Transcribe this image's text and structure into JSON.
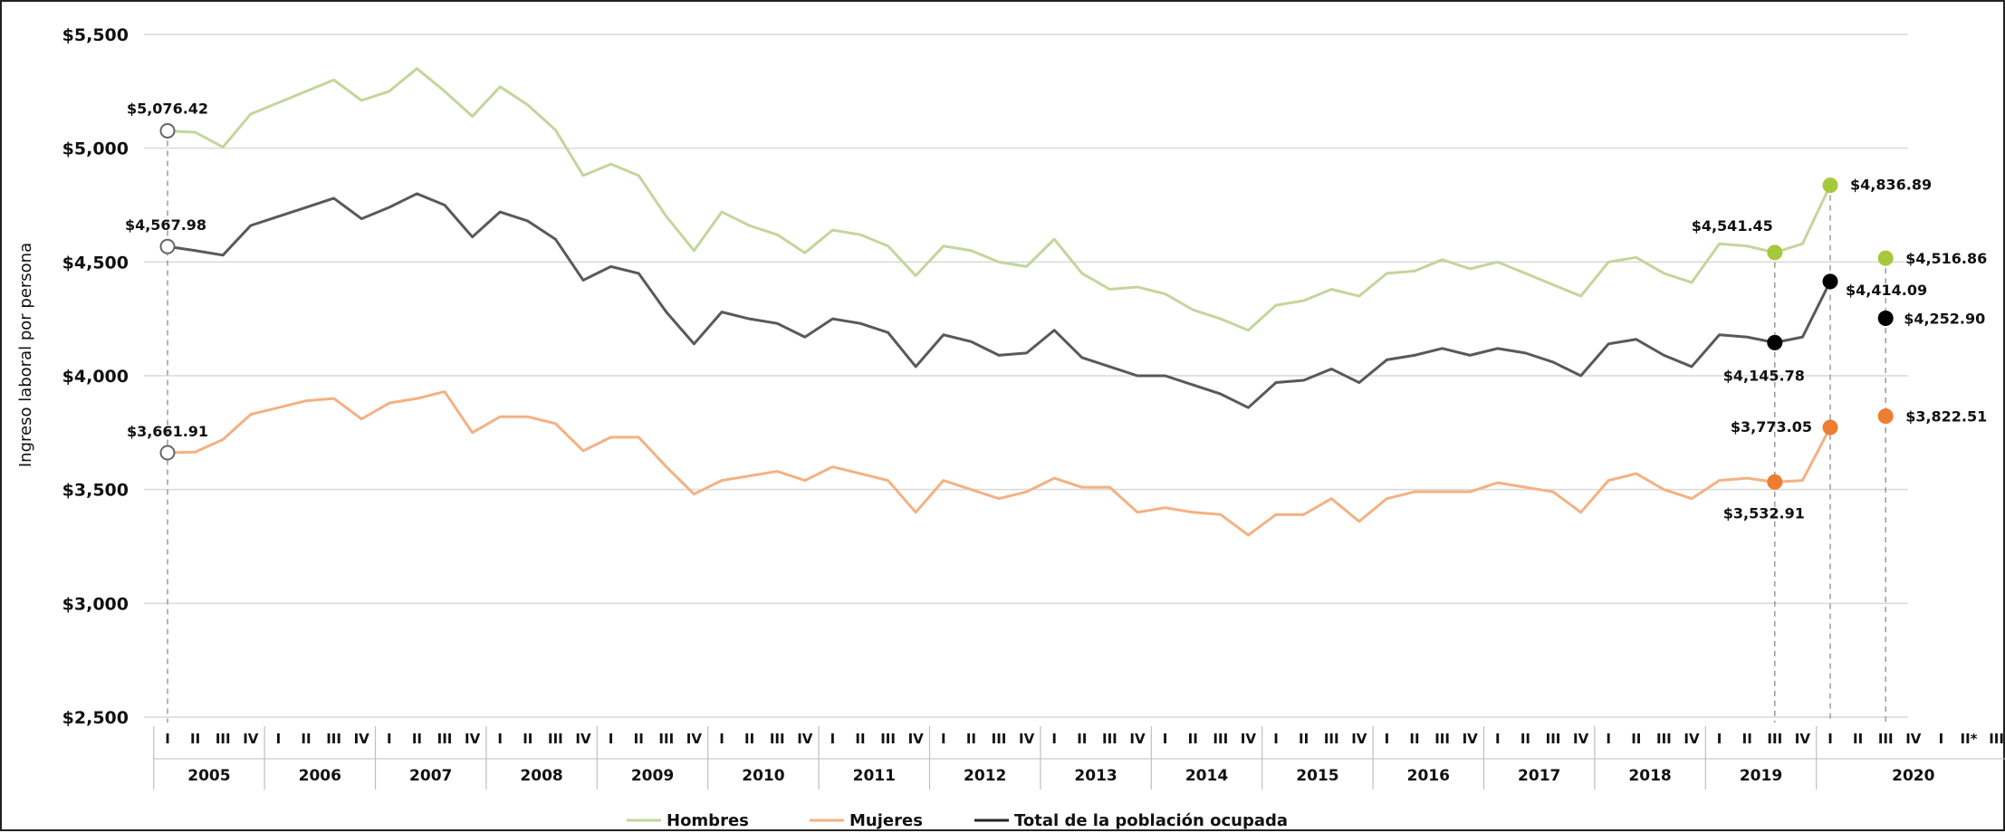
{
  "chart_data": {
    "type": "line",
    "title": "",
    "xlabel": "",
    "ylabel": "Ingreso laboral por persona",
    "ylim": [
      2500,
      5500
    ],
    "yticks": [
      "$5,500",
      "$5,000",
      "$4,500",
      "$4,000",
      "$3,500",
      "$3,000",
      "$2,500"
    ],
    "ytick_values": [
      5500,
      5000,
      4500,
      4000,
      3500,
      3000,
      2500
    ],
    "grid": "horizontal",
    "legend": "bottom",
    "years": [
      "2005",
      "2006",
      "2007",
      "2008",
      "2009",
      "2010",
      "2011",
      "2012",
      "2013",
      "2014",
      "2015",
      "2016",
      "2017",
      "2018",
      "2019",
      "2020"
    ],
    "quarter_labels": [
      "I",
      "II",
      "III",
      "IV",
      "I",
      "II",
      "III",
      "IV",
      "I",
      "II",
      "III",
      "IV",
      "I",
      "II",
      "III",
      "IV",
      "I",
      "II",
      "III",
      "IV",
      "I",
      "II",
      "III",
      "IV",
      "I",
      "II",
      "III",
      "IV",
      "I",
      "II",
      "III",
      "IV",
      "I",
      "II",
      "III",
      "IV",
      "I",
      "II",
      "III",
      "IV",
      "I",
      "II",
      "III",
      "IV",
      "I",
      "II",
      "III",
      "IV",
      "I",
      "II",
      "III",
      "IV",
      "I",
      "II",
      "III",
      "IV",
      "I",
      "II",
      "III",
      "IV",
      "I",
      "II",
      "III",
      "IV",
      "I",
      "II*",
      "III"
    ],
    "series": [
      {
        "name": "Hombres",
        "color": "#c3d69b",
        "marker_color": "#a6c83c",
        "values": [
          5076.42,
          5070,
          5005,
          5150,
          5200,
          5250,
          5300,
          5210,
          5250,
          5350,
          5250,
          5140,
          5270,
          5190,
          5080,
          4880,
          4930,
          4880,
          4700,
          4550,
          4720,
          4660,
          4620,
          4540,
          4640,
          4620,
          4570,
          4440,
          4570,
          4550,
          4500,
          4480,
          4600,
          4450,
          4380,
          4390,
          4360,
          4290,
          4250,
          4200,
          4310,
          4330,
          4380,
          4350,
          4450,
          4460,
          4510,
          4470,
          4500,
          4450,
          4400,
          4350,
          4500,
          4520,
          4450,
          4410,
          4580,
          4570,
          4541.45,
          4580,
          4836.89,
          null,
          4516.86
        ]
      },
      {
        "name": "Mujeres",
        "color": "#f4b183",
        "marker_color": "#ed7d31",
        "values": [
          3661.91,
          3665,
          3720,
          3830,
          3860,
          3890,
          3900,
          3810,
          3880,
          3900,
          3930,
          3750,
          3820,
          3820,
          3790,
          3670,
          3730,
          3730,
          3600,
          3480,
          3540,
          3560,
          3580,
          3540,
          3600,
          3570,
          3540,
          3400,
          3540,
          3500,
          3460,
          3490,
          3550,
          3510,
          3510,
          3400,
          3420,
          3400,
          3390,
          3300,
          3390,
          3390,
          3460,
          3360,
          3460,
          3490,
          3490,
          3490,
          3530,
          3510,
          3490,
          3400,
          3540,
          3570,
          3500,
          3460,
          3540,
          3550,
          3532.91,
          3540,
          3773.05,
          null,
          3822.51
        ]
      },
      {
        "name": "Total de la población ocupada",
        "color": "#595959",
        "marker_color": "#000000",
        "values": [
          4567.98,
          4550,
          4530,
          4660,
          4700,
          4740,
          4780,
          4690,
          4740,
          4800,
          4750,
          4610,
          4720,
          4680,
          4600,
          4420,
          4480,
          4450,
          4280,
          4140,
          4280,
          4250,
          4230,
          4170,
          4250,
          4230,
          4190,
          4040,
          4180,
          4150,
          4090,
          4100,
          4200,
          4080,
          4040,
          4000,
          4000,
          3960,
          3920,
          3860,
          3970,
          3980,
          4030,
          3970,
          4070,
          4090,
          4120,
          4090,
          4120,
          4100,
          4060,
          4000,
          4140,
          4160,
          4090,
          4040,
          4180,
          4170,
          4145.78,
          4170,
          4414.09,
          null,
          4252.9
        ]
      }
    ],
    "annotations": [
      {
        "text": "$5,076.42",
        "series": 0,
        "index": 0,
        "hollow": true
      },
      {
        "text": "$4,567.98",
        "series": 2,
        "index": 0,
        "hollow": true
      },
      {
        "text": "$3,661.91",
        "series": 1,
        "index": 0,
        "hollow": true
      },
      {
        "text": "$4,541.45",
        "series": 0,
        "index": 58,
        "hollow": false
      },
      {
        "text": "$4,836.89",
        "series": 0,
        "index": 60,
        "hollow": false
      },
      {
        "text": "$4,516.86",
        "series": 0,
        "index": 62,
        "hollow": false
      },
      {
        "text": "$4,145.78",
        "series": 2,
        "index": 58,
        "hollow": false
      },
      {
        "text": "$4,414.09",
        "series": 2,
        "index": 60,
        "hollow": false
      },
      {
        "text": "$4,252.90",
        "series": 2,
        "index": 62,
        "hollow": false
      },
      {
        "text": "$3,532.91",
        "series": 1,
        "index": 58,
        "hollow": false
      },
      {
        "text": "$3,773.05",
        "series": 1,
        "index": 60,
        "hollow": false
      },
      {
        "text": "$3,822.51",
        "series": 1,
        "index": 62,
        "hollow": false
      }
    ],
    "dashed_guides_at": [
      0,
      58,
      60,
      62
    ]
  }
}
